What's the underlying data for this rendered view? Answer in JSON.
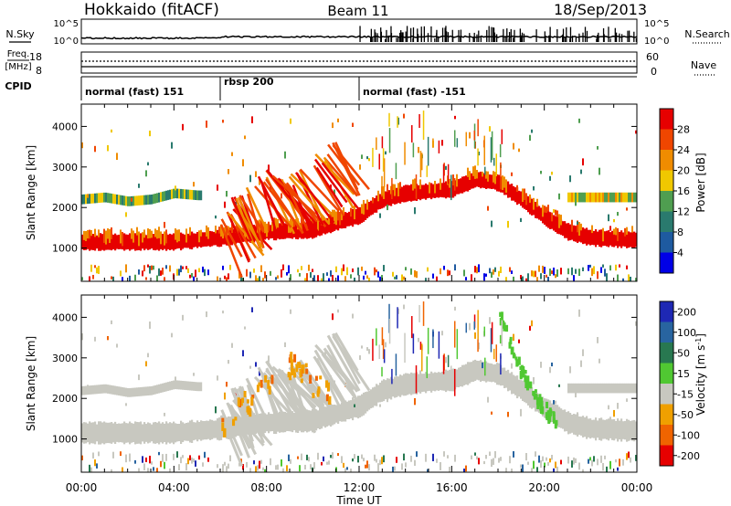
{
  "header": {
    "title_left": "Hokkaido (fitACF)",
    "title_center": "Beam 11",
    "title_right": "18/Sep/2013"
  },
  "top_panels": {
    "nsky_label": "N.Sky",
    "nsearch_label": "N.Search",
    "noise_ticks": [
      "10^5",
      "10^0"
    ],
    "freq_label_line1": "Freq.",
    "freq_label_line2": "[MHz]",
    "freq_ticks": [
      "18",
      "8"
    ],
    "nave_label": "Nave",
    "nave_ticks": [
      "60",
      "0"
    ],
    "cpid_label": "CPID",
    "cpid_segments": [
      {
        "start_hour": 0,
        "end_hour": 6,
        "label": "normal (fast) 151"
      },
      {
        "start_hour": 6,
        "end_hour": 12,
        "label": "rbsp 200"
      },
      {
        "start_hour": 12,
        "end_hour": 24,
        "label": "normal (fast) -151"
      }
    ]
  },
  "chart_data": [
    {
      "type": "heatmap",
      "quantity": "Power",
      "xlabel": "",
      "ylabel": "Slant Range [km]",
      "xlim": [
        0,
        24
      ],
      "ylim": [
        180,
        4550
      ],
      "yticks": [
        1000,
        2000,
        3000,
        4000
      ],
      "colorbar": {
        "label": "Power [dB]",
        "ticks": [
          "4",
          "8",
          "12",
          "16",
          "20",
          "24",
          "28"
        ],
        "tick_values": [
          4,
          8,
          12,
          16,
          20,
          24,
          28
        ],
        "range": [
          0,
          32
        ],
        "colors": [
          "#0000e6",
          "#1e5aa0",
          "#2a7a6e",
          "#4f9e50",
          "#f0c800",
          "#f08c00",
          "#f04600",
          "#e60000"
        ]
      },
      "structures": [
        {
          "name": "dominant echo band",
          "x": [
            0,
            2,
            4,
            6,
            8,
            10,
            12,
            13,
            14,
            16,
            17,
            18,
            19,
            20,
            21,
            22,
            24
          ],
          "y": [
            1150,
            1150,
            1150,
            1250,
            1400,
            1450,
            1800,
            2200,
            2350,
            2450,
            2700,
            2600,
            2200,
            1750,
            1400,
            1250,
            1200
          ],
          "power_db": 30
        },
        {
          "name": "upper patch",
          "x": [
            0,
            1,
            2,
            3,
            4,
            5
          ],
          "y": [
            2200,
            2250,
            2150,
            2200,
            2350,
            2300
          ],
          "power_db": 12
        },
        {
          "name": "oblique streaks",
          "x": [
            6,
            7,
            8,
            9,
            10,
            11
          ],
          "y": [
            1900,
            2600,
            3000,
            2800,
            3300,
            3700
          ],
          "power_db": 26
        }
      ]
    },
    {
      "type": "heatmap",
      "quantity": "Velocity",
      "xlabel": "Time UT",
      "ylabel": "Slant Range [km]",
      "xlim": [
        0,
        24
      ],
      "ylim": [
        180,
        4550
      ],
      "xticks": [
        "00:00",
        "04:00",
        "08:00",
        "12:00",
        "16:00",
        "20:00",
        "00:00"
      ],
      "xtick_values": [
        0,
        4,
        8,
        12,
        16,
        20,
        24
      ],
      "yticks": [
        1000,
        2000,
        3000,
        4000
      ],
      "colorbar": {
        "label": "Velocity [m s^-1]",
        "ticks": [
          "200",
          "100",
          "50",
          "15",
          "-15",
          "-50",
          "-100",
          "-200"
        ],
        "tick_values": [
          200,
          100,
          50,
          15,
          -15,
          -50,
          -100,
          -200
        ],
        "colors": [
          "#1e28b4",
          "#2864a0",
          "#287850",
          "#50c832",
          "#c8c8c0",
          "#f0a000",
          "#f06400",
          "#e60000"
        ]
      },
      "structures": [
        {
          "name": "ground scatter band",
          "x": [
            0,
            2,
            4,
            6,
            8,
            10,
            12,
            13,
            14,
            16,
            17,
            18,
            19,
            20,
            21,
            22,
            24
          ],
          "y": [
            1150,
            1150,
            1150,
            1250,
            1400,
            1450,
            1800,
            2200,
            2350,
            2450,
            2700,
            2600,
            2200,
            1750,
            1400,
            1250,
            1200
          ],
          "velocity_ms": 0
        },
        {
          "name": "green receding echoes",
          "x": [
            18,
            18.5,
            19,
            19.5,
            20,
            20.5
          ],
          "y": [
            4200,
            3400,
            2700,
            2200,
            1800,
            1500
          ],
          "velocity_ms": 40
        },
        {
          "name": "orange approaching echoes",
          "x": [
            6,
            7,
            8,
            9,
            10,
            11
          ],
          "y": [
            1400,
            1900,
            2500,
            2900,
            2400,
            2100
          ],
          "velocity_ms": -40
        }
      ]
    }
  ]
}
